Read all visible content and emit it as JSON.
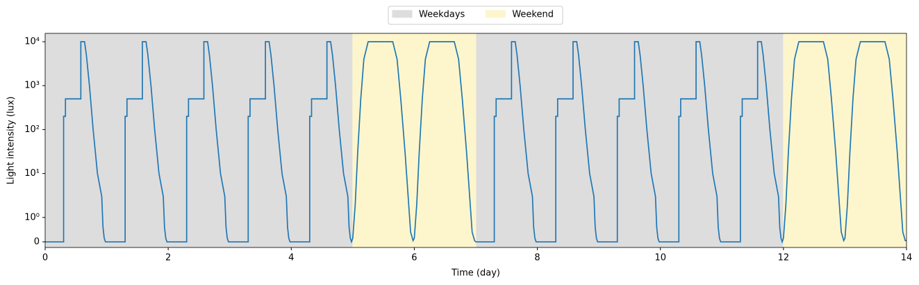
{
  "chart_data": {
    "type": "line",
    "xlabel": "Time (day)",
    "ylabel": "Light intensity (lux)",
    "xlim": [
      0,
      14
    ],
    "xticks": [
      0,
      2,
      4,
      6,
      8,
      10,
      12,
      14
    ],
    "yscale": "symlog",
    "linthresh": 1,
    "linscale": 0.5,
    "ylim": [
      -0.23,
      15500
    ],
    "yticks": [
      0,
      {
        "value": 1,
        "label": "10⁰"
      },
      {
        "value": 10,
        "label": "10¹"
      },
      {
        "value": 100,
        "label": "10²"
      },
      {
        "value": 1000,
        "label": "10³"
      },
      {
        "value": 10000,
        "label": "10⁴"
      }
    ],
    "legend": "upper center outside",
    "spans": [
      {
        "name": "Weekdays",
        "color": "#dddddd",
        "ranges": [
          [
            0,
            5
          ],
          [
            7,
            12
          ]
        ]
      },
      {
        "name": "Weekend",
        "color": "#fdf6cc",
        "ranges": [
          [
            5,
            7
          ],
          [
            12,
            14
          ]
        ]
      }
    ],
    "series": [
      {
        "color": "#1f77b4",
        "x": [
          0,
          0.3,
          0.3,
          0.33,
          0.33,
          0.58,
          0.58,
          0.64,
          0.67,
          0.72,
          0.78,
          0.85,
          0.92,
          0.94,
          0.96,
          0.98,
          1,
          1.3,
          1.3,
          1.33,
          1.33,
          1.58,
          1.58,
          1.64,
          1.67,
          1.72,
          1.78,
          1.85,
          1.92,
          1.94,
          1.96,
          1.98,
          2,
          2.3,
          2.3,
          2.33,
          2.33,
          2.58,
          2.58,
          2.64,
          2.67,
          2.72,
          2.78,
          2.85,
          2.92,
          2.94,
          2.96,
          2.98,
          3,
          3.3,
          3.3,
          3.33,
          3.33,
          3.58,
          3.58,
          3.64,
          3.67,
          3.72,
          3.78,
          3.85,
          3.92,
          3.94,
          3.96,
          3.98,
          4,
          4.3,
          4.3,
          4.33,
          4.33,
          4.58,
          4.58,
          4.64,
          4.67,
          4.72,
          4.78,
          4.85,
          4.92,
          4.94,
          4.96,
          4.98,
          5,
          5.04,
          5.08,
          5.13,
          5.18,
          5.25,
          5.65,
          5.72,
          5.78,
          5.85,
          5.9,
          5.94,
          5.98,
          6,
          6.04,
          6.08,
          6.13,
          6.18,
          6.25,
          6.65,
          6.72,
          6.78,
          6.85,
          6.9,
          6.94,
          6.98,
          7,
          7.3,
          7.3,
          7.33,
          7.33,
          7.58,
          7.58,
          7.64,
          7.67,
          7.72,
          7.78,
          7.85,
          7.92,
          7.94,
          7.96,
          7.98,
          8,
          8.3,
          8.3,
          8.33,
          8.33,
          8.58,
          8.58,
          8.64,
          8.67,
          8.72,
          8.78,
          8.85,
          8.92,
          8.94,
          8.96,
          8.98,
          9,
          9.3,
          9.3,
          9.33,
          9.33,
          9.58,
          9.58,
          9.64,
          9.67,
          9.72,
          9.78,
          9.85,
          9.92,
          9.94,
          9.96,
          9.98,
          10,
          10.3,
          10.3,
          10.33,
          10.33,
          10.58,
          10.58,
          10.64,
          10.67,
          10.72,
          10.78,
          10.85,
          10.92,
          10.94,
          10.96,
          10.98,
          11,
          11.3,
          11.3,
          11.33,
          11.33,
          11.58,
          11.58,
          11.64,
          11.67,
          11.72,
          11.78,
          11.85,
          11.92,
          11.94,
          11.96,
          11.98,
          12,
          12.04,
          12.08,
          12.13,
          12.18,
          12.25,
          12.65,
          12.72,
          12.78,
          12.85,
          12.9,
          12.94,
          12.98,
          13,
          13.04,
          13.08,
          13.13,
          13.18,
          13.25,
          13.65,
          13.72,
          13.78,
          13.85,
          13.9,
          13.94,
          13.98,
          14
        ],
        "values": [
          0,
          0,
          200,
          200,
          500,
          500,
          10000,
          10000,
          5000,
          1000,
          100,
          10,
          3,
          0.6,
          0.15,
          0,
          0,
          0,
          200,
          200,
          500,
          500,
          10000,
          10000,
          5000,
          1000,
          100,
          10,
          3,
          0.6,
          0.15,
          0,
          0,
          0,
          200,
          200,
          500,
          500,
          10000,
          10000,
          5000,
          1000,
          100,
          10,
          3,
          0.6,
          0.15,
          0,
          0,
          0,
          200,
          200,
          500,
          500,
          10000,
          10000,
          5000,
          1000,
          100,
          10,
          3,
          0.6,
          0.15,
          0,
          0,
          0,
          200,
          200,
          500,
          500,
          10000,
          10000,
          5000,
          1000,
          100,
          10,
          3,
          0.6,
          0.15,
          0,
          0.15,
          2,
          30,
          500,
          4000,
          10000,
          10000,
          4000,
          500,
          30,
          3,
          0.4,
          0.05,
          0.15,
          2,
          30,
          500,
          4000,
          10000,
          10000,
          4000,
          500,
          30,
          3,
          0.4,
          0.05,
          0,
          0,
          200,
          200,
          500,
          500,
          10000,
          10000,
          5000,
          1000,
          100,
          10,
          3,
          0.6,
          0.15,
          0,
          0,
          0,
          200,
          200,
          500,
          500,
          10000,
          10000,
          5000,
          1000,
          100,
          10,
          3,
          0.6,
          0.15,
          0,
          0,
          0,
          200,
          200,
          500,
          500,
          10000,
          10000,
          5000,
          1000,
          100,
          10,
          3,
          0.6,
          0.15,
          0,
          0,
          0,
          200,
          200,
          500,
          500,
          10000,
          10000,
          5000,
          1000,
          100,
          10,
          3,
          0.6,
          0.15,
          0,
          0,
          0,
          200,
          200,
          500,
          500,
          10000,
          10000,
          5000,
          1000,
          100,
          10,
          3,
          0.6,
          0.15,
          0,
          0.15,
          2,
          30,
          500,
          4000,
          10000,
          10000,
          4000,
          500,
          30,
          3,
          0.4,
          0.05,
          0.15,
          2,
          30,
          500,
          4000,
          10000,
          10000,
          4000,
          500,
          30,
          3,
          0.4,
          0.05,
          0.05
        ]
      }
    ]
  }
}
